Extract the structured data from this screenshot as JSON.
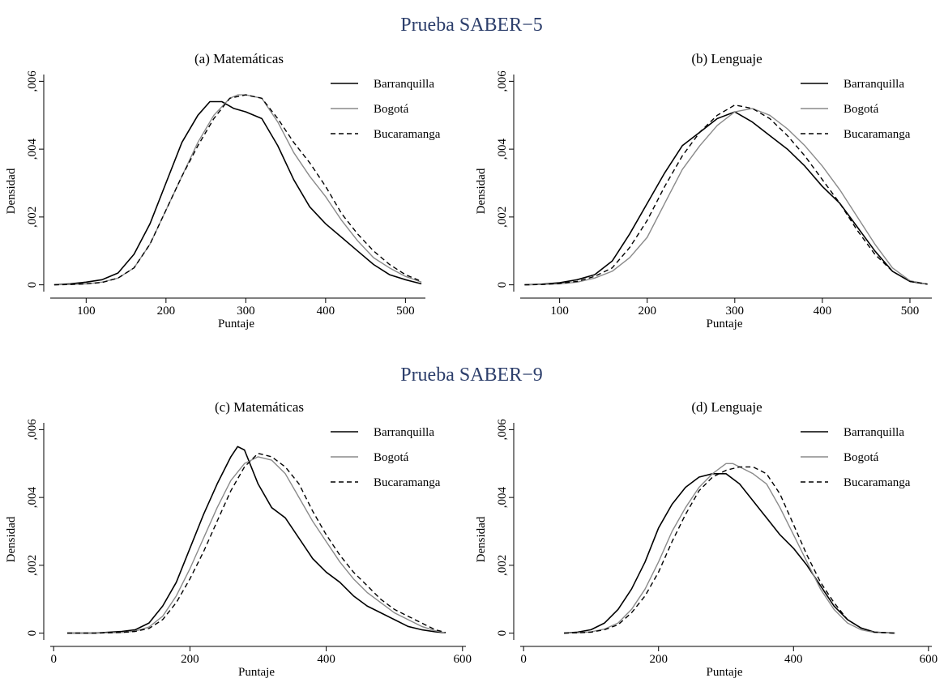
{
  "figure": {
    "section_titles": [
      "Prueba SABER−5",
      "Prueba SABER−9"
    ]
  },
  "series_styles": {
    "Barranquilla": {
      "color": "#000000",
      "dash": "",
      "width": 1.6
    },
    "Bogotá": {
      "color": "#8a8a8a",
      "dash": "",
      "width": 1.4
    },
    "Bucaramanga": {
      "color": "#000000",
      "dash": "6,4",
      "width": 1.4
    }
  },
  "chart_data": [
    {
      "type": "line",
      "title": "(a) Matemáticas",
      "xlabel": "Puntaje",
      "ylabel": "Densidad",
      "xlim": [
        55,
        525
      ],
      "ylim": [
        -0.0002,
        0.0062
      ],
      "xticks": [
        100,
        200,
        300,
        400,
        500
      ],
      "xtick_labels": [
        "100",
        "200",
        "300",
        "400",
        "500"
      ],
      "yticks": [
        0,
        0.002,
        0.004,
        0.006
      ],
      "ytick_labels": [
        "0",
        ",002",
        ",004",
        ",006"
      ],
      "legend": "top-right",
      "series": [
        {
          "name": "Barranquilla",
          "x": [
            60,
            80,
            100,
            120,
            140,
            160,
            180,
            200,
            220,
            240,
            255,
            270,
            285,
            300,
            320,
            340,
            360,
            380,
            400,
            420,
            440,
            460,
            480,
            500,
            520
          ],
          "y": [
            0,
            3e-05,
            8e-05,
            0.00015,
            0.00035,
            0.0009,
            0.0018,
            0.003,
            0.0042,
            0.005,
            0.0054,
            0.0054,
            0.0052,
            0.0051,
            0.0049,
            0.0041,
            0.0031,
            0.0023,
            0.0018,
            0.0014,
            0.001,
            0.0006,
            0.0003,
            0.00015,
            3e-05
          ]
        },
        {
          "name": "Bogotá",
          "x": [
            60,
            80,
            100,
            120,
            140,
            160,
            180,
            200,
            220,
            240,
            260,
            280,
            290,
            300,
            320,
            340,
            360,
            380,
            400,
            420,
            440,
            460,
            480,
            500,
            520
          ],
          "y": [
            0,
            1e-05,
            3e-05,
            8e-05,
            0.0002,
            0.0005,
            0.0012,
            0.0022,
            0.0032,
            0.0042,
            0.005,
            0.0055,
            0.0056,
            0.0056,
            0.0055,
            0.0048,
            0.0039,
            0.0032,
            0.0026,
            0.0019,
            0.0013,
            0.0008,
            0.0005,
            0.00025,
            8e-05
          ]
        },
        {
          "name": "Bucaramanga",
          "x": [
            60,
            80,
            100,
            120,
            140,
            160,
            180,
            200,
            220,
            240,
            260,
            280,
            300,
            320,
            340,
            360,
            380,
            400,
            420,
            440,
            460,
            480,
            500,
            520
          ],
          "y": [
            0,
            1e-05,
            3e-05,
            7e-05,
            0.0002,
            0.0005,
            0.0012,
            0.0022,
            0.0032,
            0.0041,
            0.0049,
            0.0055,
            0.0056,
            0.0055,
            0.0049,
            0.0042,
            0.0036,
            0.0029,
            0.0021,
            0.0015,
            0.001,
            0.0006,
            0.0003,
            0.0001
          ]
        }
      ]
    },
    {
      "type": "line",
      "title": "(b) Lenguaje",
      "xlabel": "Puntaje",
      "ylabel": "Densidad",
      "xlim": [
        55,
        525
      ],
      "ylim": [
        -0.0002,
        0.0062
      ],
      "xticks": [
        100,
        200,
        300,
        400,
        500
      ],
      "xtick_labels": [
        "100",
        "200",
        "300",
        "400",
        "500"
      ],
      "yticks": [
        0,
        0.002,
        0.004,
        0.006
      ],
      "ytick_labels": [
        "0",
        ",002",
        ",004",
        ",006"
      ],
      "legend": "top-right",
      "series": [
        {
          "name": "Barranquilla",
          "x": [
            60,
            80,
            100,
            120,
            140,
            160,
            180,
            200,
            220,
            240,
            260,
            280,
            300,
            320,
            340,
            360,
            380,
            400,
            420,
            440,
            460,
            480,
            500,
            520
          ],
          "y": [
            0,
            2e-05,
            6e-05,
            0.00015,
            0.0003,
            0.0007,
            0.0015,
            0.0024,
            0.0033,
            0.0041,
            0.0045,
            0.0049,
            0.0051,
            0.0048,
            0.0044,
            0.004,
            0.0035,
            0.0029,
            0.0024,
            0.0017,
            0.001,
            0.0004,
            0.0001,
            2e-05
          ]
        },
        {
          "name": "Bogotá",
          "x": [
            60,
            80,
            100,
            120,
            140,
            160,
            180,
            200,
            220,
            240,
            260,
            280,
            300,
            320,
            340,
            360,
            380,
            400,
            420,
            440,
            460,
            480,
            500,
            520
          ],
          "y": [
            0,
            1e-05,
            3e-05,
            8e-05,
            0.0002,
            0.0004,
            0.0008,
            0.0014,
            0.0024,
            0.0034,
            0.0041,
            0.0047,
            0.0051,
            0.0052,
            0.005,
            0.0046,
            0.0041,
            0.0035,
            0.0028,
            0.002,
            0.0012,
            0.0005,
            0.00012,
            2e-05
          ]
        },
        {
          "name": "Bucaramanga",
          "x": [
            60,
            80,
            100,
            120,
            140,
            160,
            180,
            200,
            220,
            240,
            260,
            280,
            300,
            320,
            340,
            360,
            380,
            400,
            420,
            440,
            460,
            480,
            500,
            520
          ],
          "y": [
            0,
            1e-05,
            4e-05,
            0.0001,
            0.00025,
            0.0005,
            0.0011,
            0.0019,
            0.0029,
            0.0038,
            0.0045,
            0.005,
            0.0053,
            0.0052,
            0.0049,
            0.0044,
            0.0038,
            0.0031,
            0.0024,
            0.0016,
            0.0009,
            0.0004,
            0.0001,
            2e-05
          ]
        }
      ]
    },
    {
      "type": "line",
      "title": "(c) Matemáticas",
      "xlabel": "Puntaje",
      "ylabel": "Densidad",
      "xlim": [
        -5,
        605
      ],
      "ylim": [
        -0.0002,
        0.0062
      ],
      "xticks": [
        0,
        200,
        400,
        600
      ],
      "xtick_labels": [
        "0",
        "200",
        "400",
        "600"
      ],
      "yticks": [
        0,
        0.002,
        0.004,
        0.006
      ],
      "ytick_labels": [
        "0",
        ",002",
        ",004",
        ",006"
      ],
      "legend": "top-right",
      "series": [
        {
          "name": "Barranquilla",
          "x": [
            20,
            60,
            100,
            120,
            140,
            160,
            180,
            200,
            220,
            240,
            260,
            270,
            280,
            300,
            320,
            340,
            360,
            380,
            400,
            420,
            440,
            460,
            480,
            500,
            520,
            540,
            560,
            575
          ],
          "y": [
            0,
            0,
            5e-05,
            0.0001,
            0.0003,
            0.0008,
            0.0015,
            0.0025,
            0.0035,
            0.0044,
            0.0052,
            0.0055,
            0.0054,
            0.0044,
            0.0037,
            0.0034,
            0.0028,
            0.0022,
            0.0018,
            0.0015,
            0.0011,
            0.0008,
            0.0006,
            0.0004,
            0.0002,
            0.0001,
            4e-05,
            1e-05
          ]
        },
        {
          "name": "Bogotá",
          "x": [
            20,
            60,
            100,
            120,
            140,
            160,
            180,
            200,
            220,
            240,
            260,
            280,
            300,
            320,
            340,
            360,
            380,
            400,
            420,
            440,
            460,
            480,
            500,
            520,
            540,
            560,
            575
          ],
          "y": [
            0,
            0,
            2e-05,
            6e-05,
            0.00018,
            0.0005,
            0.0011,
            0.0019,
            0.0028,
            0.0037,
            0.0045,
            0.005,
            0.0052,
            0.0051,
            0.0047,
            0.004,
            0.0033,
            0.0027,
            0.0021,
            0.0016,
            0.0012,
            0.0009,
            0.0006,
            0.0004,
            0.0002,
            7e-05,
            1e-05
          ]
        },
        {
          "name": "Bucaramanga",
          "x": [
            20,
            60,
            100,
            120,
            140,
            160,
            180,
            200,
            220,
            240,
            260,
            280,
            300,
            320,
            340,
            360,
            380,
            400,
            420,
            440,
            460,
            480,
            500,
            520,
            540,
            560,
            575
          ],
          "y": [
            0,
            0,
            2e-05,
            5e-05,
            0.00014,
            0.0004,
            0.0009,
            0.0016,
            0.0024,
            0.0033,
            0.0042,
            0.0049,
            0.0053,
            0.0052,
            0.0049,
            0.0044,
            0.0036,
            0.0029,
            0.0023,
            0.0018,
            0.0014,
            0.001,
            0.0007,
            0.0005,
            0.0003,
            0.0001,
            2e-05
          ]
        }
      ]
    },
    {
      "type": "line",
      "title": "(d) Lenguaje",
      "xlabel": "Puntaje",
      "ylabel": "Densidad",
      "xlim": [
        -5,
        605
      ],
      "ylim": [
        -0.0002,
        0.0062
      ],
      "xticks": [
        0,
        200,
        400,
        600
      ],
      "xtick_labels": [
        "0",
        "200",
        "400",
        "600"
      ],
      "yticks": [
        0,
        0.002,
        0.004,
        0.006
      ],
      "ytick_labels": [
        "0",
        ",002",
        ",004",
        ",006"
      ],
      "legend": "top-right",
      "series": [
        {
          "name": "Barranquilla",
          "x": [
            60,
            80,
            100,
            120,
            140,
            160,
            180,
            200,
            220,
            240,
            260,
            280,
            300,
            320,
            340,
            360,
            380,
            400,
            420,
            440,
            460,
            480,
            500,
            520,
            550
          ],
          "y": [
            0,
            3e-05,
            0.0001,
            0.0003,
            0.0007,
            0.0013,
            0.0021,
            0.0031,
            0.0038,
            0.0043,
            0.0046,
            0.0047,
            0.0047,
            0.0044,
            0.0039,
            0.0034,
            0.0029,
            0.0025,
            0.002,
            0.0014,
            0.0008,
            0.0004,
            0.00015,
            3e-05,
            0
          ]
        },
        {
          "name": "Bogotá",
          "x": [
            60,
            80,
            100,
            120,
            140,
            160,
            180,
            200,
            220,
            240,
            260,
            280,
            300,
            310,
            320,
            340,
            360,
            380,
            400,
            420,
            440,
            460,
            480,
            500,
            520,
            550
          ],
          "y": [
            0,
            1e-05,
            4e-05,
            0.00012,
            0.0003,
            0.0007,
            0.0013,
            0.0021,
            0.003,
            0.0037,
            0.0043,
            0.0047,
            0.005,
            0.005,
            0.0049,
            0.0047,
            0.0044,
            0.0037,
            0.0029,
            0.0021,
            0.0013,
            0.0007,
            0.0003,
            0.0001,
            2e-05,
            0
          ]
        },
        {
          "name": "Bucaramanga",
          "x": [
            60,
            80,
            100,
            120,
            140,
            160,
            180,
            200,
            220,
            240,
            260,
            280,
            300,
            320,
            340,
            360,
            380,
            400,
            420,
            440,
            460,
            480,
            500,
            520,
            550
          ],
          "y": [
            0,
            1e-05,
            3e-05,
            0.0001,
            0.00025,
            0.0006,
            0.0011,
            0.0018,
            0.0027,
            0.0035,
            0.0042,
            0.0046,
            0.0048,
            0.0049,
            0.0049,
            0.0047,
            0.0041,
            0.0032,
            0.0023,
            0.0015,
            0.0009,
            0.0004,
            0.00015,
            3e-05,
            0
          ]
        }
      ]
    }
  ]
}
